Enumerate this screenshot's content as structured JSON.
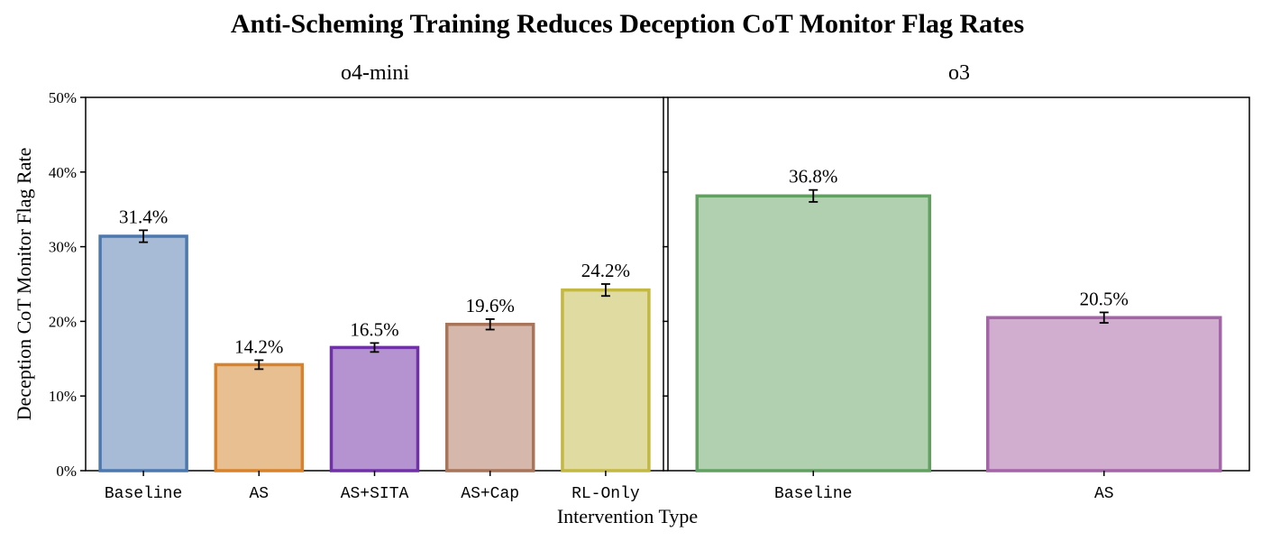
{
  "chart_data": {
    "type": "bar",
    "title": "Anti-Scheming Training Reduces Deception CoT Monitor Flag Rates",
    "xlabel": "Intervention Type",
    "ylabel": "Deception CoT Monitor Flag Rate",
    "ylim": [
      0,
      50
    ],
    "yticks": [
      "0%",
      "10%",
      "20%",
      "30%",
      "40%",
      "50%"
    ],
    "panels": [
      {
        "title": "o4-mini",
        "categories": [
          "Baseline",
          "AS",
          "AS+SITA",
          "AS+Cap",
          "RL-Only"
        ],
        "values": [
          31.4,
          14.2,
          16.5,
          19.6,
          24.2
        ],
        "errors": [
          0.8,
          0.6,
          0.6,
          0.7,
          0.8
        ],
        "labels": [
          "31.4%",
          "14.2%",
          "16.5%",
          "19.6%",
          "24.2%"
        ],
        "fill_colors": [
          "#a7bbd7",
          "#e8bf90",
          "#b593d0",
          "#d5b8ab",
          "#e0dca1"
        ],
        "edge_colors": [
          "#4c78b0",
          "#d9822b",
          "#7030a8",
          "#a8745a",
          "#c2b843"
        ]
      },
      {
        "title": "o3",
        "categories": [
          "Baseline",
          "AS"
        ],
        "values": [
          36.8,
          20.5
        ],
        "errors": [
          0.8,
          0.7
        ],
        "labels": [
          "36.8%",
          "20.5%"
        ],
        "fill_colors": [
          "#b0d0b0",
          "#d1adcf"
        ],
        "edge_colors": [
          "#62a062",
          "#a464a8"
        ]
      }
    ]
  }
}
